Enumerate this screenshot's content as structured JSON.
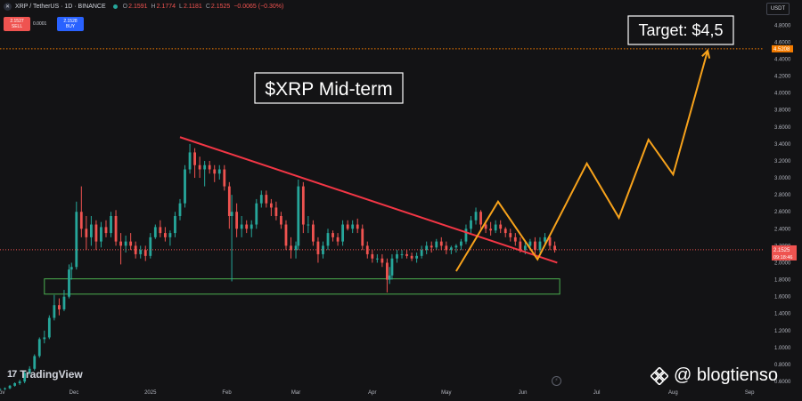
{
  "header": {
    "symbol": "XRP / TetherUS · 1D · BINANCE",
    "coin_glyph": "✕",
    "open_label": "O",
    "open": "2.1591",
    "high_label": "H",
    "high": "2.1774",
    "low_label": "L",
    "low": "2.1181",
    "close_label": "C",
    "close": "2.1525",
    "change": "−0.0065 (−0.30%)"
  },
  "trade": {
    "sell_price": "2.1527",
    "sell_label": "SELL",
    "spread": "0.0001",
    "buy_price": "2.1528",
    "buy_label": "BUY"
  },
  "currency_button": "USDT",
  "branding": {
    "tradingview": "TradingView",
    "tradingview_mark": "17",
    "watermark_handle": "@ blogtienso"
  },
  "colors": {
    "background": "#131315",
    "up_candle": "#26a69a",
    "down_candle": "#ef5350",
    "trendline": "#f23645",
    "support_box": "#4caf50",
    "projection": "#f7a21b",
    "target_line": "#f57c00"
  },
  "chart_data": {
    "type": "candlestick",
    "title": "$XRP Mid-term",
    "target_label": "Target: $4,5",
    "x_tick_labels": [
      "Nov",
      "Dec",
      "2025",
      "Feb",
      "Mar",
      "Apr",
      "May",
      "Jun",
      "Jul",
      "Aug",
      "Sep"
    ],
    "x_tick_dates": [
      "2024-11-01",
      "2024-12-01",
      "2025-01-01",
      "2025-02-01",
      "2025-03-01",
      "2025-04-01",
      "2025-05-01",
      "2025-06-01",
      "2025-07-01",
      "2025-08-01",
      "2025-09-01"
    ],
    "x_range": [
      "2024-11-01",
      "2025-09-06"
    ],
    "y_range": [
      0.58,
      4.96
    ],
    "y_scale": "linear",
    "y_tick_labels": [
      "0.6000",
      "0.8000",
      "1.0000",
      "1.2000",
      "1.4000",
      "1.6000",
      "1.8000",
      "2.0000",
      "2.2000",
      "2.4000",
      "2.6000",
      "2.8000",
      "3.0000",
      "3.2000",
      "3.4000",
      "3.6000",
      "3.8000",
      "4.0000",
      "4.2000",
      "4.4000",
      "4.6000",
      "4.8000"
    ],
    "grid": false,
    "last_price": 2.1525,
    "last_price_label": "2.1525",
    "countdown_label": "09:18:46",
    "target_price": 4.5208,
    "target_price_label": "4.5208",
    "candles": [
      {
        "date": "2024-11-01",
        "o": 0.51,
        "h": 0.52,
        "l": 0.5,
        "c": 0.51
      },
      {
        "date": "2024-11-03",
        "o": 0.51,
        "h": 0.53,
        "l": 0.5,
        "c": 0.52
      },
      {
        "date": "2024-11-05",
        "o": 0.52,
        "h": 0.56,
        "l": 0.51,
        "c": 0.55
      },
      {
        "date": "2024-11-07",
        "o": 0.55,
        "h": 0.59,
        "l": 0.54,
        "c": 0.58
      },
      {
        "date": "2024-11-09",
        "o": 0.58,
        "h": 0.62,
        "l": 0.56,
        "c": 0.6
      },
      {
        "date": "2024-11-11",
        "o": 0.6,
        "h": 0.72,
        "l": 0.58,
        "c": 0.7
      },
      {
        "date": "2024-11-13",
        "o": 0.7,
        "h": 0.78,
        "l": 0.68,
        "c": 0.75
      },
      {
        "date": "2024-11-15",
        "o": 0.75,
        "h": 0.92,
        "l": 0.73,
        "c": 0.9
      },
      {
        "date": "2024-11-17",
        "o": 0.9,
        "h": 1.12,
        "l": 0.88,
        "c": 1.1
      },
      {
        "date": "2024-11-19",
        "o": 1.1,
        "h": 1.2,
        "l": 1.05,
        "c": 1.12
      },
      {
        "date": "2024-11-21",
        "o": 1.12,
        "h": 1.38,
        "l": 1.1,
        "c": 1.35
      },
      {
        "date": "2024-11-23",
        "o": 1.35,
        "h": 1.62,
        "l": 1.32,
        "c": 1.5
      },
      {
        "date": "2024-11-25",
        "o": 1.5,
        "h": 1.58,
        "l": 1.38,
        "c": 1.45
      },
      {
        "date": "2024-11-27",
        "o": 1.45,
        "h": 1.68,
        "l": 1.43,
        "c": 1.6
      },
      {
        "date": "2024-11-29",
        "o": 1.6,
        "h": 1.98,
        "l": 1.58,
        "c": 1.92
      },
      {
        "date": "2024-11-30",
        "o": 1.92,
        "h": 2.0,
        "l": 1.8,
        "c": 1.95
      },
      {
        "date": "2024-12-02",
        "o": 1.95,
        "h": 2.72,
        "l": 1.92,
        "c": 2.6
      },
      {
        "date": "2024-12-04",
        "o": 2.6,
        "h": 2.9,
        "l": 2.3,
        "c": 2.4
      },
      {
        "date": "2024-12-06",
        "o": 2.4,
        "h": 2.55,
        "l": 2.15,
        "c": 2.3
      },
      {
        "date": "2024-12-08",
        "o": 2.3,
        "h": 2.55,
        "l": 2.2,
        "c": 2.45
      },
      {
        "date": "2024-12-10",
        "o": 2.45,
        "h": 2.5,
        "l": 2.15,
        "c": 2.25
      },
      {
        "date": "2024-12-12",
        "o": 2.25,
        "h": 2.48,
        "l": 2.18,
        "c": 2.42
      },
      {
        "date": "2024-12-14",
        "o": 2.42,
        "h": 2.5,
        "l": 2.3,
        "c": 2.35
      },
      {
        "date": "2024-12-16",
        "o": 2.35,
        "h": 2.6,
        "l": 2.3,
        "c": 2.55
      },
      {
        "date": "2024-12-18",
        "o": 2.55,
        "h": 2.62,
        "l": 2.2,
        "c": 2.25
      },
      {
        "date": "2024-12-20",
        "o": 2.25,
        "h": 2.35,
        "l": 1.98,
        "c": 2.2
      },
      {
        "date": "2024-12-22",
        "o": 2.2,
        "h": 2.32,
        "l": 2.12,
        "c": 2.25
      },
      {
        "date": "2024-12-24",
        "o": 2.25,
        "h": 2.35,
        "l": 2.15,
        "c": 2.2
      },
      {
        "date": "2024-12-26",
        "o": 2.2,
        "h": 2.25,
        "l": 2.05,
        "c": 2.1
      },
      {
        "date": "2024-12-28",
        "o": 2.1,
        "h": 2.2,
        "l": 2.05,
        "c": 2.15
      },
      {
        "date": "2024-12-30",
        "o": 2.15,
        "h": 2.2,
        "l": 2.02,
        "c": 2.08
      },
      {
        "date": "2025-01-01",
        "o": 2.08,
        "h": 2.35,
        "l": 2.05,
        "c": 2.3
      },
      {
        "date": "2025-01-03",
        "o": 2.3,
        "h": 2.45,
        "l": 2.28,
        "c": 2.42
      },
      {
        "date": "2025-01-05",
        "o": 2.42,
        "h": 2.5,
        "l": 2.3,
        "c": 2.35
      },
      {
        "date": "2025-01-07",
        "o": 2.35,
        "h": 2.42,
        "l": 2.25,
        "c": 2.3
      },
      {
        "date": "2025-01-09",
        "o": 2.3,
        "h": 2.38,
        "l": 2.2,
        "c": 2.35
      },
      {
        "date": "2025-01-11",
        "o": 2.35,
        "h": 2.6,
        "l": 2.3,
        "c": 2.55
      },
      {
        "date": "2025-01-13",
        "o": 2.55,
        "h": 2.75,
        "l": 2.5,
        "c": 2.7
      },
      {
        "date": "2025-01-15",
        "o": 2.7,
        "h": 3.15,
        "l": 2.65,
        "c": 3.1
      },
      {
        "date": "2025-01-17",
        "o": 3.1,
        "h": 3.4,
        "l": 3.05,
        "c": 3.3
      },
      {
        "date": "2025-01-19",
        "o": 3.3,
        "h": 3.35,
        "l": 3.0,
        "c": 3.15
      },
      {
        "date": "2025-01-21",
        "o": 3.15,
        "h": 3.25,
        "l": 3.0,
        "c": 3.1
      },
      {
        "date": "2025-01-23",
        "o": 3.1,
        "h": 3.2,
        "l": 2.9,
        "c": 3.15
      },
      {
        "date": "2025-01-25",
        "o": 3.15,
        "h": 3.2,
        "l": 3.05,
        "c": 3.1
      },
      {
        "date": "2025-01-27",
        "o": 3.1,
        "h": 3.15,
        "l": 2.95,
        "c": 3.05
      },
      {
        "date": "2025-01-29",
        "o": 3.05,
        "h": 3.15,
        "l": 2.98,
        "c": 3.1
      },
      {
        "date": "2025-01-31",
        "o": 3.1,
        "h": 3.15,
        "l": 2.85,
        "c": 2.9
      },
      {
        "date": "2025-02-02",
        "o": 2.9,
        "h": 2.95,
        "l": 2.4,
        "c": 2.55
      },
      {
        "date": "2025-02-03",
        "o": 2.55,
        "h": 2.8,
        "l": 1.78,
        "c": 2.6
      },
      {
        "date": "2025-02-05",
        "o": 2.6,
        "h": 2.7,
        "l": 2.3,
        "c": 2.4
      },
      {
        "date": "2025-02-07",
        "o": 2.4,
        "h": 2.55,
        "l": 2.3,
        "c": 2.45
      },
      {
        "date": "2025-02-09",
        "o": 2.45,
        "h": 2.5,
        "l": 2.35,
        "c": 2.4
      },
      {
        "date": "2025-02-11",
        "o": 2.4,
        "h": 2.5,
        "l": 2.3,
        "c": 2.45
      },
      {
        "date": "2025-02-13",
        "o": 2.45,
        "h": 2.75,
        "l": 2.4,
        "c": 2.7
      },
      {
        "date": "2025-02-15",
        "o": 2.7,
        "h": 2.85,
        "l": 2.65,
        "c": 2.8
      },
      {
        "date": "2025-02-17",
        "o": 2.8,
        "h": 2.85,
        "l": 2.65,
        "c": 2.7
      },
      {
        "date": "2025-02-19",
        "o": 2.7,
        "h": 2.75,
        "l": 2.55,
        "c": 2.65
      },
      {
        "date": "2025-02-21",
        "o": 2.65,
        "h": 2.72,
        "l": 2.5,
        "c": 2.55
      },
      {
        "date": "2025-02-23",
        "o": 2.55,
        "h": 2.6,
        "l": 2.4,
        "c": 2.45
      },
      {
        "date": "2025-02-25",
        "o": 2.45,
        "h": 2.5,
        "l": 2.15,
        "c": 2.2
      },
      {
        "date": "2025-02-27",
        "o": 2.2,
        "h": 2.3,
        "l": 2.05,
        "c": 2.15
      },
      {
        "date": "2025-03-01",
        "o": 2.15,
        "h": 2.25,
        "l": 2.05,
        "c": 2.2
      },
      {
        "date": "2025-03-02",
        "o": 2.2,
        "h": 2.98,
        "l": 2.15,
        "c": 2.9
      },
      {
        "date": "2025-03-04",
        "o": 2.9,
        "h": 2.95,
        "l": 2.35,
        "c": 2.45
      },
      {
        "date": "2025-03-06",
        "o": 2.45,
        "h": 2.55,
        "l": 2.35,
        "c": 2.45
      },
      {
        "date": "2025-03-08",
        "o": 2.45,
        "h": 2.5,
        "l": 2.2,
        "c": 2.25
      },
      {
        "date": "2025-03-10",
        "o": 2.25,
        "h": 2.3,
        "l": 2.0,
        "c": 2.1
      },
      {
        "date": "2025-03-12",
        "o": 2.1,
        "h": 2.25,
        "l": 2.05,
        "c": 2.2
      },
      {
        "date": "2025-03-14",
        "o": 2.2,
        "h": 2.4,
        "l": 2.15,
        "c": 2.35
      },
      {
        "date": "2025-03-16",
        "o": 2.35,
        "h": 2.38,
        "l": 2.25,
        "c": 2.3
      },
      {
        "date": "2025-03-18",
        "o": 2.3,
        "h": 2.35,
        "l": 2.2,
        "c": 2.25
      },
      {
        "date": "2025-03-20",
        "o": 2.25,
        "h": 2.5,
        "l": 2.2,
        "c": 2.45
      },
      {
        "date": "2025-03-22",
        "o": 2.45,
        "h": 2.5,
        "l": 2.38,
        "c": 2.4
      },
      {
        "date": "2025-03-24",
        "o": 2.4,
        "h": 2.5,
        "l": 2.35,
        "c": 2.45
      },
      {
        "date": "2025-03-26",
        "o": 2.45,
        "h": 2.52,
        "l": 2.35,
        "c": 2.4
      },
      {
        "date": "2025-03-28",
        "o": 2.4,
        "h": 2.45,
        "l": 2.15,
        "c": 2.2
      },
      {
        "date": "2025-03-30",
        "o": 2.2,
        "h": 2.25,
        "l": 2.05,
        "c": 2.1
      },
      {
        "date": "2025-04-01",
        "o": 2.1,
        "h": 2.15,
        "l": 2.0,
        "c": 2.05
      },
      {
        "date": "2025-04-03",
        "o": 2.05,
        "h": 2.1,
        "l": 2.0,
        "c": 2.05
      },
      {
        "date": "2025-04-05",
        "o": 2.05,
        "h": 2.1,
        "l": 1.95,
        "c": 2.0
      },
      {
        "date": "2025-04-07",
        "o": 2.0,
        "h": 2.05,
        "l": 1.65,
        "c": 1.8
      },
      {
        "date": "2025-04-08",
        "o": 1.8,
        "h": 1.95,
        "l": 1.75,
        "c": 1.85
      },
      {
        "date": "2025-04-09",
        "o": 1.85,
        "h": 2.1,
        "l": 1.8,
        "c": 2.05
      },
      {
        "date": "2025-04-11",
        "o": 2.05,
        "h": 2.15,
        "l": 2.0,
        "c": 2.1
      },
      {
        "date": "2025-04-13",
        "o": 2.1,
        "h": 2.15,
        "l": 2.05,
        "c": 2.1
      },
      {
        "date": "2025-04-15",
        "o": 2.1,
        "h": 2.15,
        "l": 2.05,
        "c": 2.08
      },
      {
        "date": "2025-04-17",
        "o": 2.08,
        "h": 2.12,
        "l": 2.02,
        "c": 2.05
      },
      {
        "date": "2025-04-19",
        "o": 2.05,
        "h": 2.12,
        "l": 2.0,
        "c": 2.08
      },
      {
        "date": "2025-04-21",
        "o": 2.08,
        "h": 2.2,
        "l": 2.05,
        "c": 2.15
      },
      {
        "date": "2025-04-23",
        "o": 2.15,
        "h": 2.25,
        "l": 2.1,
        "c": 2.2
      },
      {
        "date": "2025-04-25",
        "o": 2.2,
        "h": 2.25,
        "l": 2.12,
        "c": 2.18
      },
      {
        "date": "2025-04-27",
        "o": 2.18,
        "h": 2.28,
        "l": 2.15,
        "c": 2.25
      },
      {
        "date": "2025-04-29",
        "o": 2.25,
        "h": 2.3,
        "l": 2.15,
        "c": 2.2
      },
      {
        "date": "2025-05-01",
        "o": 2.2,
        "h": 2.25,
        "l": 2.1,
        "c": 2.15
      },
      {
        "date": "2025-05-03",
        "o": 2.15,
        "h": 2.2,
        "l": 2.1,
        "c": 2.18
      },
      {
        "date": "2025-05-05",
        "o": 2.18,
        "h": 2.22,
        "l": 2.12,
        "c": 2.2
      },
      {
        "date": "2025-05-07",
        "o": 2.2,
        "h": 2.28,
        "l": 2.15,
        "c": 2.25
      },
      {
        "date": "2025-05-09",
        "o": 2.25,
        "h": 2.45,
        "l": 2.22,
        "c": 2.4
      },
      {
        "date": "2025-05-11",
        "o": 2.4,
        "h": 2.55,
        "l": 2.35,
        "c": 2.5
      },
      {
        "date": "2025-05-13",
        "o": 2.5,
        "h": 2.65,
        "l": 2.45,
        "c": 2.6
      },
      {
        "date": "2025-05-15",
        "o": 2.6,
        "h": 2.62,
        "l": 2.4,
        "c": 2.45
      },
      {
        "date": "2025-05-17",
        "o": 2.45,
        "h": 2.5,
        "l": 2.35,
        "c": 2.4
      },
      {
        "date": "2025-05-19",
        "o": 2.4,
        "h": 2.48,
        "l": 2.32,
        "c": 2.38
      },
      {
        "date": "2025-05-21",
        "o": 2.38,
        "h": 2.5,
        "l": 2.35,
        "c": 2.45
      },
      {
        "date": "2025-05-23",
        "o": 2.45,
        "h": 2.5,
        "l": 2.35,
        "c": 2.4
      },
      {
        "date": "2025-05-25",
        "o": 2.4,
        "h": 2.42,
        "l": 2.3,
        "c": 2.35
      },
      {
        "date": "2025-05-27",
        "o": 2.35,
        "h": 2.4,
        "l": 2.25,
        "c": 2.3
      },
      {
        "date": "2025-05-29",
        "o": 2.3,
        "h": 2.35,
        "l": 2.2,
        "c": 2.25
      },
      {
        "date": "2025-05-31",
        "o": 2.25,
        "h": 2.3,
        "l": 2.12,
        "c": 2.15
      },
      {
        "date": "2025-06-02",
        "o": 2.15,
        "h": 2.25,
        "l": 2.1,
        "c": 2.2
      },
      {
        "date": "2025-06-04",
        "o": 2.2,
        "h": 2.28,
        "l": 2.15,
        "c": 2.25
      },
      {
        "date": "2025-06-06",
        "o": 2.25,
        "h": 2.3,
        "l": 2.1,
        "c": 2.15
      },
      {
        "date": "2025-06-08",
        "o": 2.15,
        "h": 2.3,
        "l": 2.12,
        "c": 2.25
      },
      {
        "date": "2025-06-10",
        "o": 2.25,
        "h": 2.35,
        "l": 2.2,
        "c": 2.3
      },
      {
        "date": "2025-06-12",
        "o": 2.3,
        "h": 2.32,
        "l": 2.15,
        "c": 2.2
      },
      {
        "date": "2025-06-14",
        "o": 2.2,
        "h": 2.25,
        "l": 2.12,
        "c": 2.15
      }
    ],
    "resistance_trendline": {
      "points": [
        [
          "2025-01-13",
          3.48
        ],
        [
          "2025-06-15",
          2.0
        ]
      ]
    },
    "support_zone": {
      "x_start": "2024-11-19",
      "x_end": "2025-06-16",
      "y_low": 1.63,
      "y_high": 1.81
    },
    "projection_path": {
      "points": [
        [
          "2025-05-05",
          1.9
        ],
        [
          "2025-05-22",
          2.72
        ],
        [
          "2025-06-07",
          2.04
        ],
        [
          "2025-06-27",
          3.17
        ],
        [
          "2025-07-10",
          2.53
        ],
        [
          "2025-07-22",
          3.45
        ],
        [
          "2025-08-01",
          3.04
        ],
        [
          "2025-08-15",
          4.5
        ]
      ]
    }
  }
}
